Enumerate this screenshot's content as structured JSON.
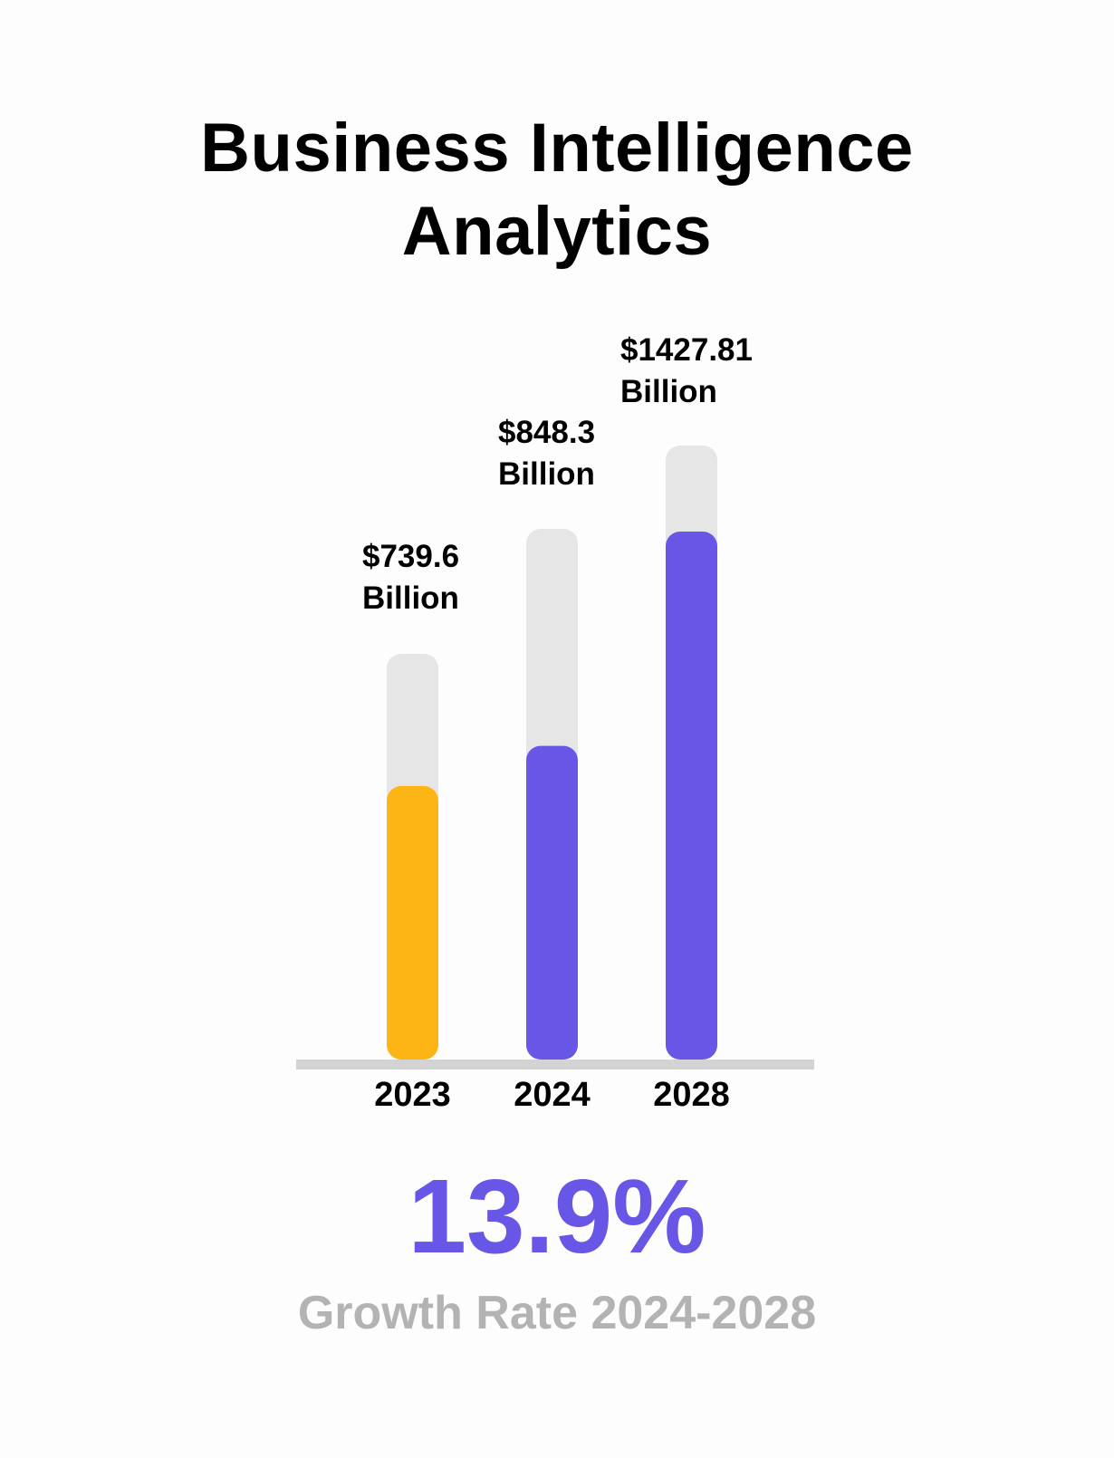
{
  "chart_data": {
    "type": "bar",
    "title": "Business Intelligence Analytics",
    "categories": [
      "2023",
      "2024",
      "2028"
    ],
    "values": [
      739.6,
      848.3,
      1427.81
    ],
    "data_labels": [
      [
        "$739.6",
        "Billion"
      ],
      [
        "$848.3",
        "Billion"
      ],
      [
        "$1427.81",
        "Billion"
      ]
    ],
    "unit": "Billion USD",
    "colors": [
      "#FDB515",
      "#6857E6",
      "#6857E6"
    ],
    "track_color": "#E6E6E6",
    "axis_color": "#D3D3D3",
    "grid": false
  },
  "title_lines": [
    "Business Intelligence",
    "Analytics"
  ],
  "highlight": {
    "value": "13.9%",
    "label": "Growth Rate 2024-2028",
    "color": "#6857E6",
    "label_color": "#B3B3B3"
  }
}
